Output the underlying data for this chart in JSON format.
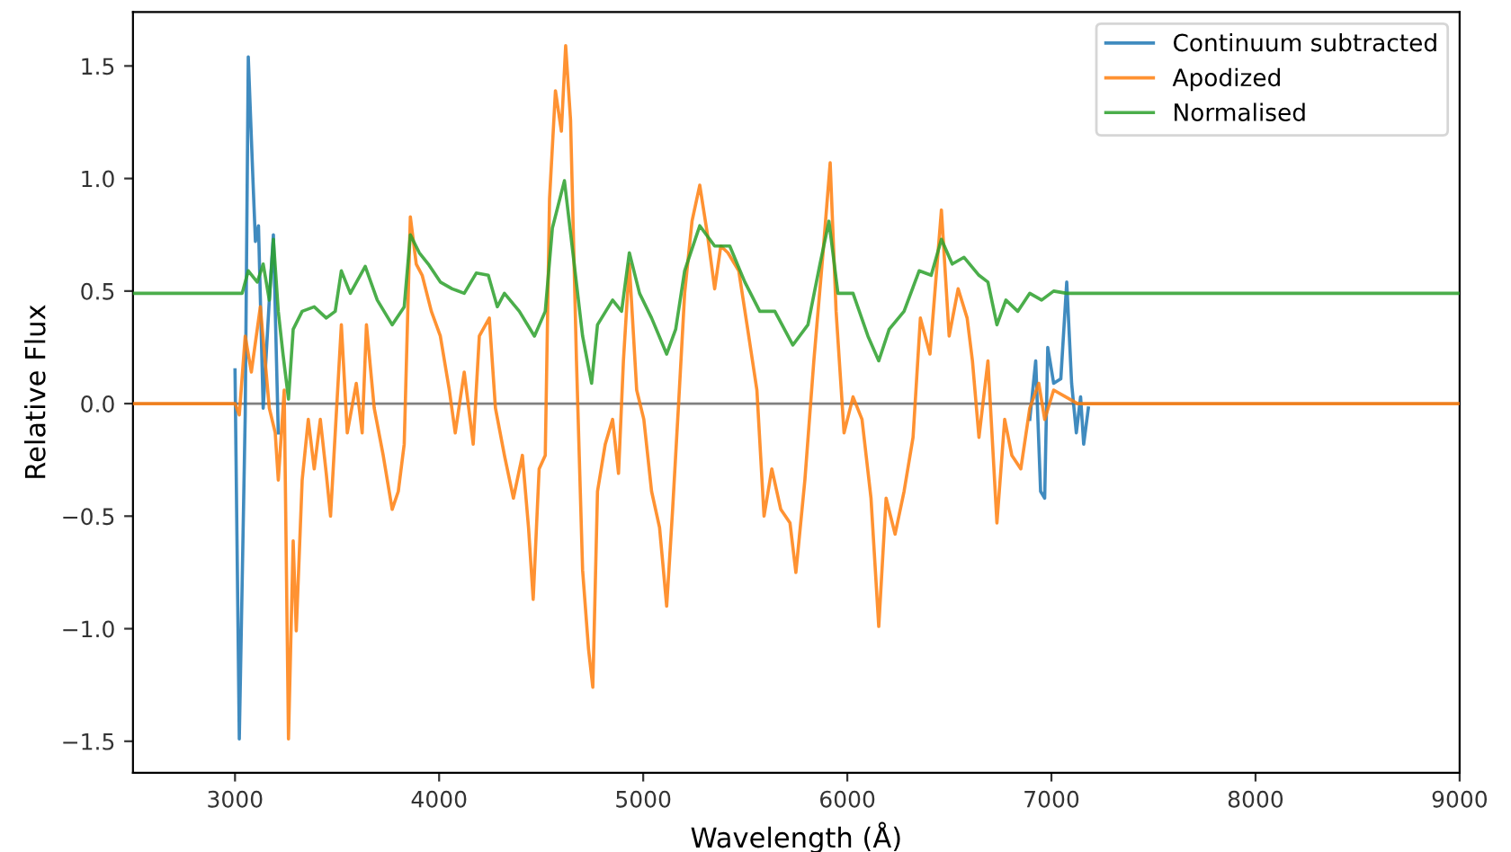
{
  "chart_data": {
    "type": "line",
    "xlabel": "Wavelength (Å)",
    "ylabel": "Relative Flux",
    "xlim": [
      2500,
      9000
    ],
    "ylim": [
      -1.64,
      1.74
    ],
    "xticks": [
      3000,
      4000,
      5000,
      6000,
      7000,
      8000,
      9000
    ],
    "yticks": [
      {
        "value": -1.5,
        "label": "−1.5"
      },
      {
        "value": -1.0,
        "label": "−1.0"
      },
      {
        "value": -0.5,
        "label": "−0.5"
      },
      {
        "value": 0,
        "label": "0.0"
      },
      {
        "value": 0.5,
        "label": "0.5"
      },
      {
        "value": 1.0,
        "label": "1.0"
      },
      {
        "value": 1.5,
        "label": "1.5"
      }
    ],
    "grid": false,
    "legend": "top right",
    "marker": "none",
    "line_style": "solid",
    "ref_lines": [
      {
        "axis": "y",
        "value": 0,
        "color": "#808080"
      }
    ],
    "series": [
      {
        "name": "Continuum subtracted",
        "color": "#1f77b4",
        "x": [
          3000,
          3021,
          3050,
          3065,
          3088,
          3100,
          3115,
          3138,
          3168,
          3188,
          3212,
          3230,
          6880,
          6894,
          6923,
          6947,
          6967,
          6982,
          7011,
          7046,
          7075,
          7099,
          7122,
          7143,
          7158,
          7181
        ],
        "values": [
          0.15,
          -1.49,
          -0.05,
          1.54,
          0.99,
          0.72,
          0.79,
          -0.02,
          0.46,
          0.75,
          -0.13,
          null,
          null,
          -0.07,
          0.19,
          -0.39,
          -0.42,
          0.25,
          0.09,
          0.11,
          0.54,
          0.09,
          -0.13,
          0.03,
          -0.18,
          -0.02
        ]
      },
      {
        "name": "Apodized",
        "color": "#ff7f0e",
        "x": [
          2500,
          3000,
          3021,
          3050,
          3080,
          3124,
          3168,
          3197,
          3212,
          3241,
          3262,
          3285,
          3300,
          3329,
          3359,
          3388,
          3418,
          3447,
          3468,
          3491,
          3521,
          3550,
          3594,
          3623,
          3644,
          3682,
          3726,
          3770,
          3800,
          3829,
          3859,
          3888,
          3917,
          3962,
          4006,
          4050,
          4079,
          4123,
          4167,
          4197,
          4246,
          4276,
          4320,
          4364,
          4408,
          4438,
          4461,
          4490,
          4520,
          4541,
          4570,
          4599,
          4620,
          4644,
          4673,
          4703,
          4732,
          4753,
          4776,
          4814,
          4850,
          4879,
          4903,
          4932,
          4968,
          5003,
          5041,
          5080,
          5115,
          5144,
          5174,
          5203,
          5239,
          5277,
          5315,
          5350,
          5380,
          5415,
          5468,
          5512,
          5557,
          5592,
          5630,
          5674,
          5719,
          5748,
          5792,
          5836,
          5881,
          5916,
          5945,
          5984,
          6028,
          6072,
          6116,
          6154,
          6190,
          6234,
          6278,
          6322,
          6358,
          6405,
          6461,
          6499,
          6543,
          6587,
          6613,
          6645,
          6689,
          6733,
          6771,
          6806,
          6850,
          6894,
          6938,
          6967,
          7011,
          7070,
          7128,
          9000
        ],
        "values": [
          0,
          0,
          -0.05,
          0.3,
          0.14,
          0.43,
          -0.02,
          -0.13,
          -0.34,
          0.06,
          -1.49,
          -0.61,
          -1.01,
          -0.34,
          -0.07,
          -0.29,
          -0.07,
          -0.31,
          -0.5,
          -0.13,
          0.35,
          -0.13,
          0.09,
          -0.13,
          0.35,
          -0.02,
          -0.23,
          -0.47,
          -0.39,
          -0.18,
          0.83,
          0.62,
          0.57,
          0.41,
          0.3,
          0.06,
          -0.13,
          0.14,
          -0.18,
          0.3,
          0.38,
          -0.02,
          -0.23,
          -0.42,
          -0.23,
          -0.55,
          -0.87,
          -0.29,
          -0.23,
          0.91,
          1.39,
          1.21,
          1.59,
          1.26,
          0.19,
          -0.74,
          -1.09,
          -1.26,
          -0.39,
          -0.18,
          -0.07,
          -0.31,
          0.19,
          0.62,
          0.06,
          -0.07,
          -0.39,
          -0.55,
          -0.9,
          -0.47,
          0.01,
          0.49,
          0.81,
          0.97,
          0.75,
          0.51,
          0.7,
          0.67,
          0.59,
          0.33,
          0.06,
          -0.5,
          -0.29,
          -0.47,
          -0.53,
          -0.75,
          -0.34,
          0.19,
          0.67,
          1.07,
          0.41,
          -0.13,
          0.03,
          -0.07,
          -0.42,
          -0.99,
          -0.42,
          -0.58,
          -0.39,
          -0.15,
          0.38,
          0.22,
          0.86,
          0.3,
          0.51,
          0.38,
          0.19,
          -0.15,
          0.19,
          -0.53,
          -0.07,
          -0.23,
          -0.29,
          -0.02,
          0.09,
          -0.07,
          0.06,
          0.03,
          0,
          0
        ]
      },
      {
        "name": "Normalised",
        "color": "#2ca02c",
        "x": [
          2500,
          3035,
          3065,
          3109,
          3138,
          3168,
          3188,
          3212,
          3235,
          3262,
          3285,
          3329,
          3388,
          3447,
          3491,
          3521,
          3565,
          3638,
          3697,
          3770,
          3829,
          3859,
          3903,
          3947,
          4006,
          4064,
          4123,
          4182,
          4241,
          4285,
          4320,
          4393,
          4467,
          4520,
          4555,
          4614,
          4658,
          4703,
          4747,
          4776,
          4850,
          4894,
          4932,
          4982,
          5041,
          5115,
          5159,
          5203,
          5277,
          5350,
          5424,
          5498,
          5571,
          5645,
          5733,
          5807,
          5866,
          5910,
          5954,
          6028,
          6101,
          6154,
          6205,
          6278,
          6352,
          6411,
          6461,
          6514,
          6572,
          6645,
          6689,
          6733,
          6777,
          6835,
          6894,
          6952,
          7011,
          7075,
          9000
        ],
        "values": [
          0.49,
          0.49,
          0.59,
          0.54,
          0.62,
          0.46,
          0.73,
          0.41,
          0.22,
          0.02,
          0.33,
          0.41,
          0.43,
          0.38,
          0.41,
          0.59,
          0.49,
          0.61,
          0.46,
          0.35,
          0.43,
          0.75,
          0.67,
          0.62,
          0.54,
          0.51,
          0.49,
          0.58,
          0.57,
          0.43,
          0.49,
          0.41,
          0.3,
          0.41,
          0.78,
          0.99,
          0.65,
          0.3,
          0.09,
          0.35,
          0.46,
          0.41,
          0.67,
          0.49,
          0.38,
          0.22,
          0.33,
          0.59,
          0.79,
          0.7,
          0.7,
          0.54,
          0.41,
          0.41,
          0.26,
          0.35,
          0.62,
          0.81,
          0.49,
          0.49,
          0.3,
          0.19,
          0.33,
          0.41,
          0.59,
          0.57,
          0.73,
          0.62,
          0.65,
          0.57,
          0.54,
          0.35,
          0.46,
          0.41,
          0.49,
          0.46,
          0.5,
          0.49,
          0.49
        ]
      }
    ]
  }
}
